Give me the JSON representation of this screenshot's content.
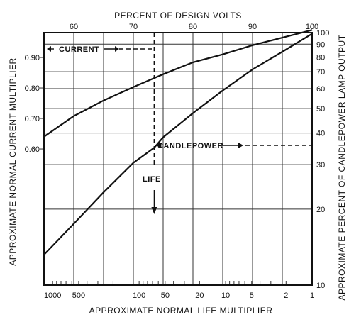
{
  "chart_data": {
    "type": "line",
    "top_axis": {
      "title": "PERCENT OF DESIGN VOLTS",
      "range": [
        55,
        100
      ],
      "ticks": [
        60,
        70,
        80,
        90,
        100
      ]
    },
    "bottom_axis": {
      "title": "APPROXIMATE NORMAL LIFE MULTIPLIER",
      "scale": "log-reversed",
      "range": [
        1000,
        1
      ],
      "ticks": [
        1000,
        500,
        100,
        50,
        20,
        10,
        5,
        2,
        1
      ],
      "tick_labels": [
        "1000",
        "500",
        "100",
        "50",
        "20",
        "10",
        "5",
        "2",
        "1"
      ]
    },
    "left_axis": {
      "title": "APPROXIMATE NORMAL CURRENT MULTIPLIER",
      "ticks": [
        0.6,
        0.7,
        0.8,
        0.9
      ],
      "tick_labels": [
        "0.60",
        "0.70",
        "0.80",
        "0.90"
      ]
    },
    "right_axis": {
      "title": "APPROXIMATE PERCENT OF CANDLEPOWER LAMP OUTPUT",
      "scale": "log",
      "range": [
        10,
        100
      ],
      "ticks": [
        10,
        20,
        30,
        40,
        50,
        60,
        70,
        80,
        90,
        100
      ],
      "tick_labels": [
        "10",
        "20",
        "30",
        "40",
        "50",
        "60",
        "70",
        "80",
        "90",
        "100"
      ]
    },
    "series": [
      {
        "name": "CURRENT",
        "x_percent_volts": [
          55,
          60,
          65,
          70,
          75,
          80,
          85,
          90,
          95,
          100
        ],
        "y_current_multiplier": [
          0.64,
          0.708,
          0.759,
          0.803,
          0.845,
          0.884,
          0.91,
          0.94,
          0.965,
          0.99
        ]
      },
      {
        "name": "CANDLEPOWER",
        "x_percent_volts": [
          55,
          60,
          65,
          70,
          73.5,
          75,
          80,
          85,
          90,
          95,
          100
        ],
        "y_candlepower_percent": [
          13.2,
          17.5,
          23.3,
          30.5,
          35,
          38.5,
          48,
          59,
          71.5,
          84,
          99
        ]
      }
    ],
    "annotations": [
      {
        "text": "CURRENT",
        "at_percent_volts": 62
      },
      {
        "text": "CANDLEPOWER",
        "at_percent_volts": 80
      },
      {
        "text": "LIFE",
        "at_percent_volts": 73.5
      }
    ],
    "reference_line": {
      "percent_volts": 73.5,
      "style": "dashed"
    },
    "grid": true,
    "legend": "none"
  }
}
